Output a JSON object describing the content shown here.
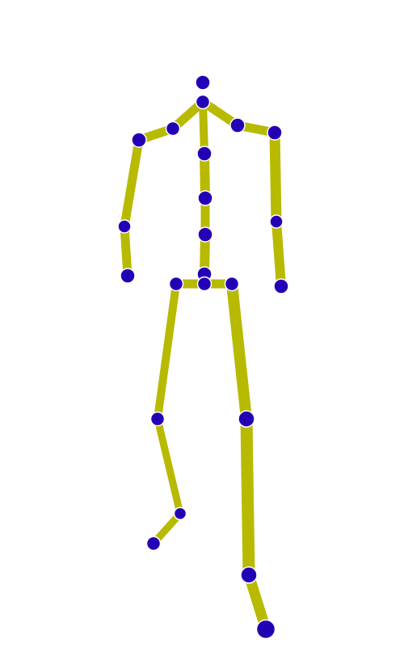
{
  "figure": {
    "type": "pose-skeleton",
    "colors": {
      "background": "#ffffff",
      "bone": "#b8ba00",
      "joint": "#2400b4",
      "joint_outline": "#ffffff"
    },
    "joints": [
      {
        "name": "head"
      },
      {
        "name": "neck"
      },
      {
        "name": "left-collar"
      },
      {
        "name": "left-shoulder"
      },
      {
        "name": "left-elbow"
      },
      {
        "name": "left-wrist"
      },
      {
        "name": "right-collar"
      },
      {
        "name": "right-shoulder"
      },
      {
        "name": "right-elbow"
      },
      {
        "name": "right-wrist"
      },
      {
        "name": "spine-upper"
      },
      {
        "name": "spine-mid"
      },
      {
        "name": "spine-lower"
      },
      {
        "name": "pelvis-top"
      },
      {
        "name": "pelvis"
      },
      {
        "name": "left-hip"
      },
      {
        "name": "right-hip"
      },
      {
        "name": "left-knee"
      },
      {
        "name": "left-ankle"
      },
      {
        "name": "left-toe"
      },
      {
        "name": "right-knee"
      },
      {
        "name": "right-ankle"
      },
      {
        "name": "right-foot"
      }
    ],
    "bones": [
      {
        "from": "neck",
        "to": "left-collar"
      },
      {
        "from": "left-collar",
        "to": "left-shoulder"
      },
      {
        "from": "left-shoulder",
        "to": "left-elbow"
      },
      {
        "from": "left-elbow",
        "to": "left-wrist"
      },
      {
        "from": "neck",
        "to": "right-collar"
      },
      {
        "from": "right-collar",
        "to": "right-shoulder"
      },
      {
        "from": "right-shoulder",
        "to": "right-elbow"
      },
      {
        "from": "right-elbow",
        "to": "right-wrist"
      },
      {
        "from": "neck",
        "to": "spine-upper"
      },
      {
        "from": "spine-upper",
        "to": "spine-mid"
      },
      {
        "from": "spine-mid",
        "to": "spine-lower"
      },
      {
        "from": "spine-lower",
        "to": "pelvis-top"
      },
      {
        "from": "pelvis",
        "to": "left-hip"
      },
      {
        "from": "pelvis",
        "to": "right-hip"
      },
      {
        "from": "left-hip",
        "to": "left-knee"
      },
      {
        "from": "left-knee",
        "to": "left-ankle"
      },
      {
        "from": "left-ankle",
        "to": "left-toe"
      },
      {
        "from": "right-hip",
        "to": "right-knee"
      },
      {
        "from": "right-knee",
        "to": "right-ankle"
      },
      {
        "from": "right-ankle",
        "to": "right-foot"
      }
    ]
  }
}
